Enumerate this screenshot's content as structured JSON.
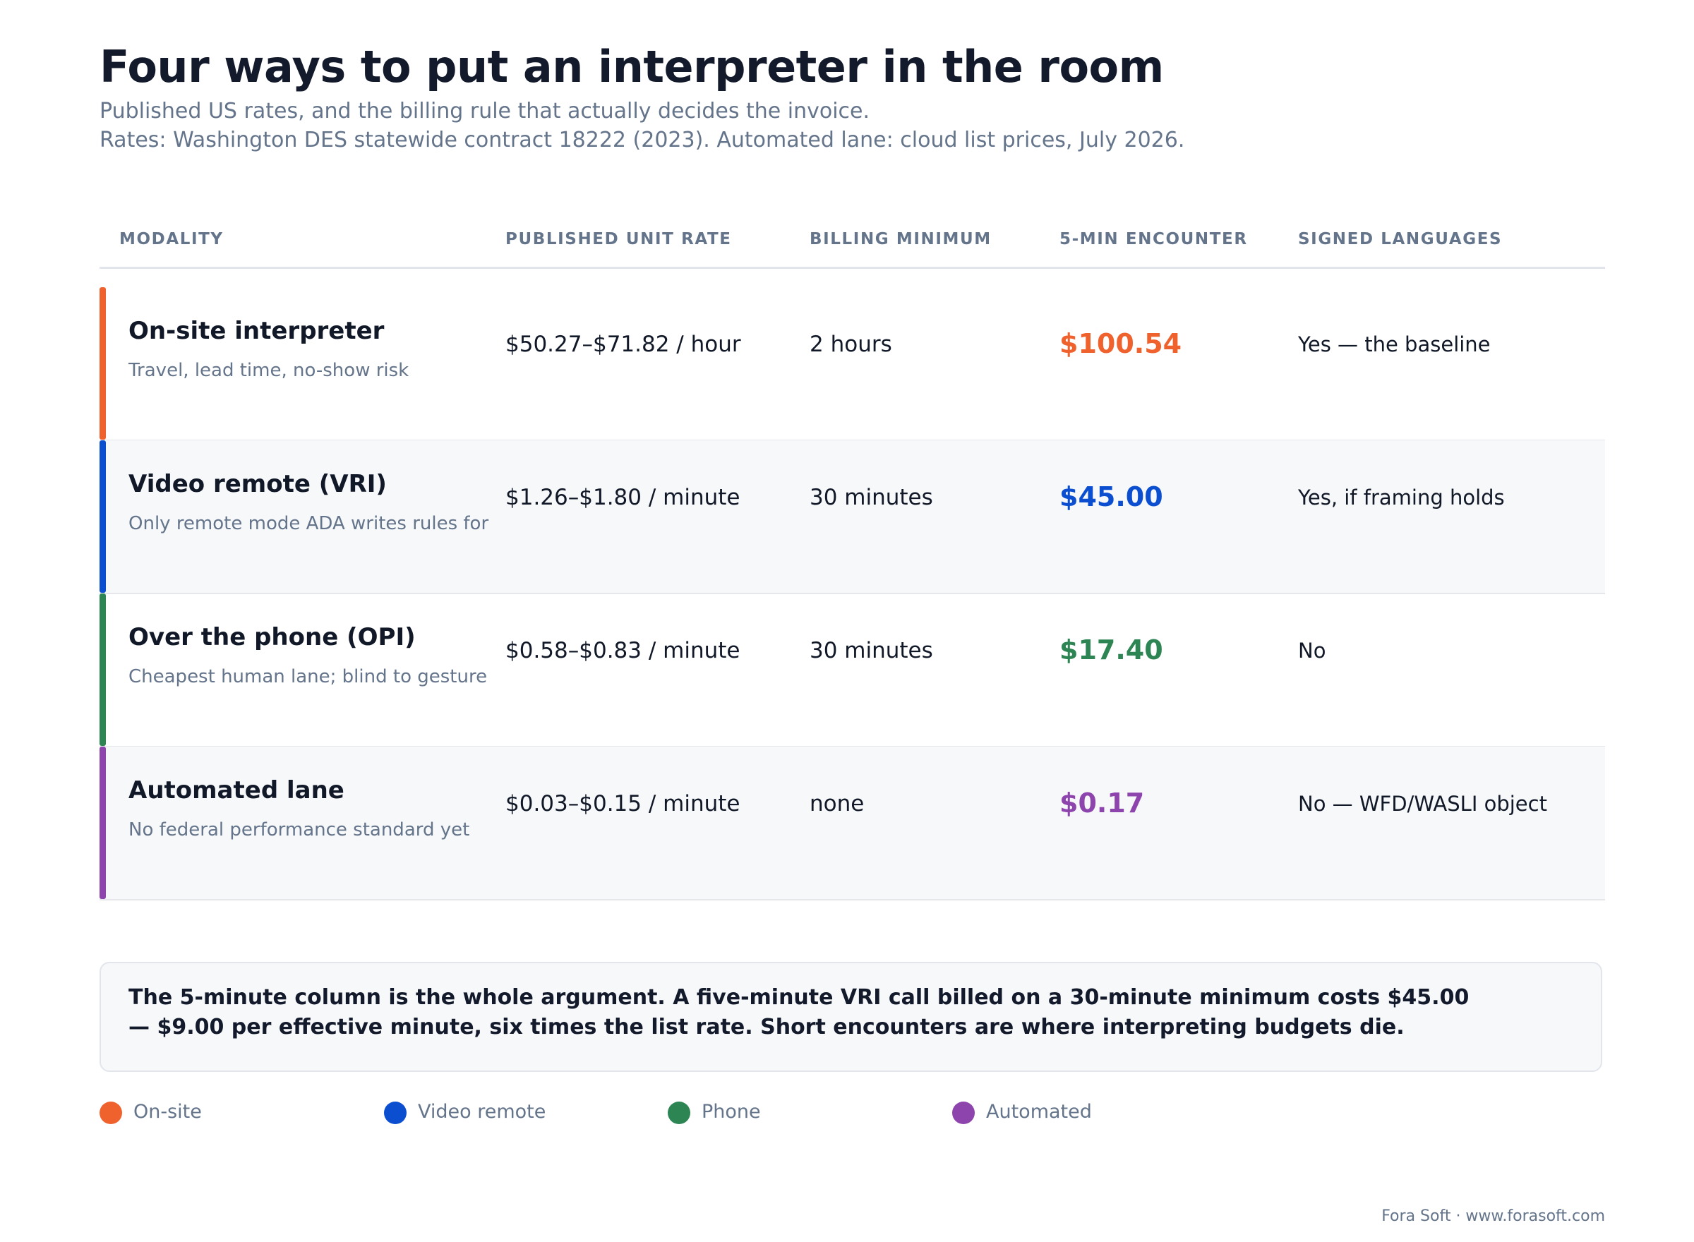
{
  "header": {
    "title": "Four ways to put an interpreter in the room",
    "subtitle_line1": "Published US rates, and the billing rule that actually decides the invoice.",
    "subtitle_line2": "Rates: Washington DES statewide contract 18222 (2023). Automated lane: cloud list prices, July 2026."
  },
  "table": {
    "columns": [
      "MODALITY",
      "PUBLISHED UNIT RATE",
      "BILLING MINIMUM",
      "5-MIN ENCOUNTER",
      "SIGNED LANGUAGES"
    ],
    "rows": [
      {
        "name": "On-site interpreter",
        "note": "Travel, lead time, no-show risk",
        "rate": "$50.27–$71.82 / hour",
        "minimum": "2 hours",
        "five_min": "$100.54",
        "signed": "Yes — the baseline",
        "color": "#f0622d"
      },
      {
        "name": "Video remote (VRI)",
        "note": "Only remote mode ADA writes rules for",
        "rate": "$1.26–$1.80 / minute",
        "minimum": "30 minutes",
        "five_min": "$45.00",
        "signed": "Yes, if framing holds",
        "color": "#0b4fd0"
      },
      {
        "name": "Over the phone (OPI)",
        "note": "Cheapest human lane; blind to gesture",
        "rate": "$0.58–$0.83 / minute",
        "minimum": "30 minutes",
        "five_min": "$17.40",
        "signed": "No",
        "color": "#2e8554"
      },
      {
        "name": "Automated lane",
        "note": "No federal performance standard yet",
        "rate": "$0.03–$0.15 / minute",
        "minimum": "none",
        "five_min": "$0.17",
        "signed": "No — WFD/WASLI object",
        "color": "#8e44ad"
      }
    ]
  },
  "callout": {
    "text": "The 5-minute column is the whole argument. A five-minute VRI call billed on a 30-minute minimum costs $45.00 — $9.00 per effective minute, six times the list rate. Short encounters are where interpreting budgets die."
  },
  "legend": [
    {
      "label": "On-site",
      "color": "#f0622d"
    },
    {
      "label": "Video remote",
      "color": "#0b4fd0"
    },
    {
      "label": "Phone",
      "color": "#2e8554"
    },
    {
      "label": "Automated",
      "color": "#8e44ad"
    }
  ],
  "footer": {
    "credit": "Fora Soft · www.forasoft.com"
  }
}
